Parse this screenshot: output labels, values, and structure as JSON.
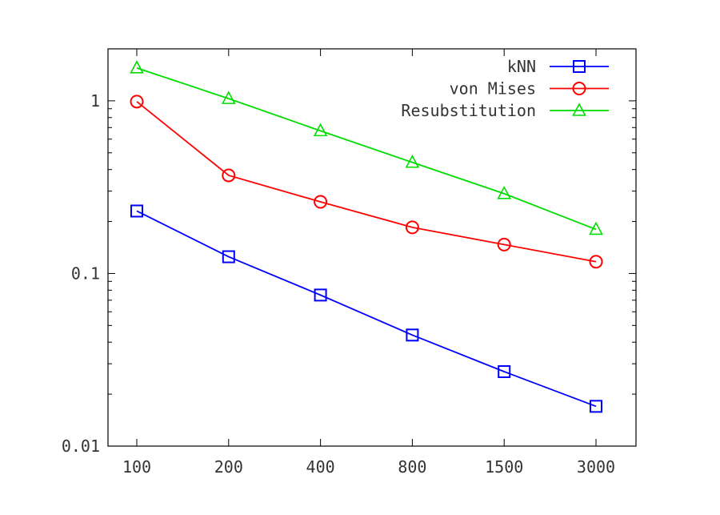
{
  "chart_data": {
    "type": "line",
    "y_scale": "log",
    "ylim": [
      0.01,
      2.0
    ],
    "x_axis_type": "category",
    "grid": false,
    "legend_position": "top-right",
    "categories": [
      "100",
      "200",
      "400",
      "800",
      "1500",
      "3000"
    ],
    "y_ticks": [
      {
        "value": 1,
        "label": "1"
      },
      {
        "value": 0.1,
        "label": "0.1"
      },
      {
        "value": 0.01,
        "label": "0.01"
      }
    ],
    "series": [
      {
        "name": "kNN",
        "color": "#0000ff",
        "marker": "square",
        "values": [
          0.23,
          0.125,
          0.075,
          0.044,
          0.027,
          0.017
        ]
      },
      {
        "name": "von Mises",
        "color": "#ff0000",
        "marker": "circle",
        "values": [
          0.99,
          0.37,
          0.26,
          0.185,
          0.147,
          0.117
        ]
      },
      {
        "name": "Resubstitution",
        "color": "#00dd00",
        "marker": "triangle",
        "values": [
          1.55,
          1.03,
          0.67,
          0.44,
          0.29,
          0.18
        ]
      }
    ]
  }
}
